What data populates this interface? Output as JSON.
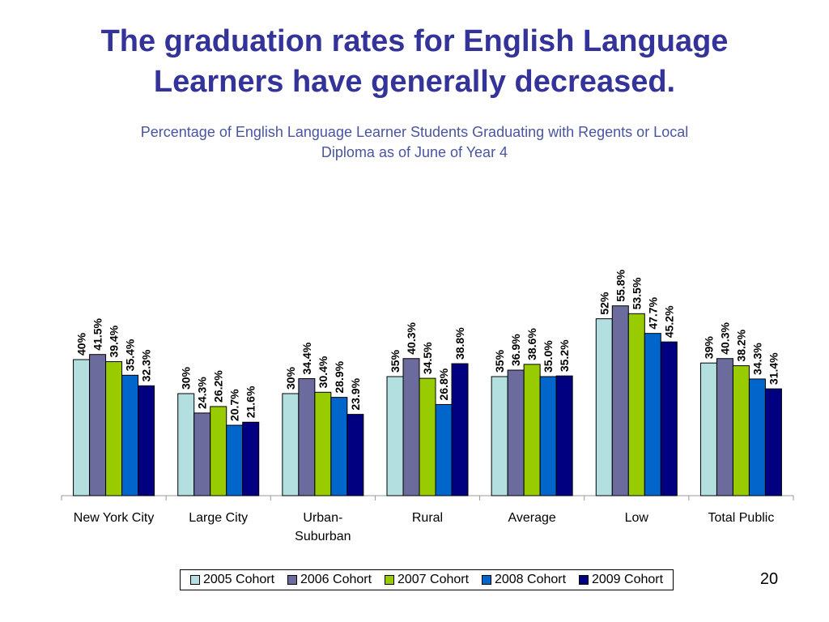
{
  "title_lines": [
    "The graduation rates for English Language",
    "Learners have generally decreased."
  ],
  "page_number": "20",
  "chart_data": {
    "type": "bar",
    "title_lines": [
      "Percentage of English Language Learner Students Graduating with Regents or Local",
      "Diploma as of June of Year 4"
    ],
    "xlabel": "",
    "ylabel": "",
    "ylim": [
      0,
      60
    ],
    "grid": false,
    "legend_position": "bottom",
    "categories": [
      [
        "New York City"
      ],
      [
        "Large City"
      ],
      [
        "Urban-",
        "Suburban"
      ],
      [
        "Rural"
      ],
      [
        "Average"
      ],
      [
        "Low"
      ],
      [
        "Total Public"
      ]
    ],
    "series": [
      {
        "name": "2005 Cohort",
        "color": "#b3dfe0",
        "values": [
          40,
          30,
          30,
          35,
          35,
          52,
          39
        ],
        "labels": [
          "40%",
          "30%",
          "30%",
          "35%",
          "35%",
          "52%",
          "39%"
        ]
      },
      {
        "name": "2006 Cohort",
        "color": "#6b6b9e",
        "values": [
          41.5,
          24.3,
          34.4,
          40.3,
          36.9,
          55.8,
          40.3
        ],
        "labels": [
          "41.5%",
          "24.3%",
          "34.4%",
          "40.3%",
          "36.9%",
          "55.8%",
          "40.3%"
        ]
      },
      {
        "name": "2007 Cohort",
        "color": "#99cc00",
        "values": [
          39.4,
          26.2,
          30.4,
          34.5,
          38.6,
          53.5,
          38.2
        ],
        "labels": [
          "39.4%",
          "26.2%",
          "30.4%",
          "34.5%",
          "38.6%",
          "53.5%",
          "38.2%"
        ]
      },
      {
        "name": "2008 Cohort",
        "color": "#0066cc",
        "values": [
          35.4,
          20.7,
          28.9,
          26.8,
          35.0,
          47.7,
          34.3
        ],
        "labels": [
          "35.4%",
          "20.7%",
          "28.9%",
          "26.8%",
          "35.0%",
          "47.7%",
          "34.3%"
        ]
      },
      {
        "name": "2009 Cohort",
        "color": "#000080",
        "values": [
          32.3,
          21.6,
          23.9,
          38.8,
          35.2,
          45.2,
          31.4
        ],
        "labels": [
          "32.3%",
          "21.6%",
          "23.9%",
          "38.8%",
          "35.2%",
          "45.2%",
          "31.4%"
        ]
      }
    ]
  }
}
